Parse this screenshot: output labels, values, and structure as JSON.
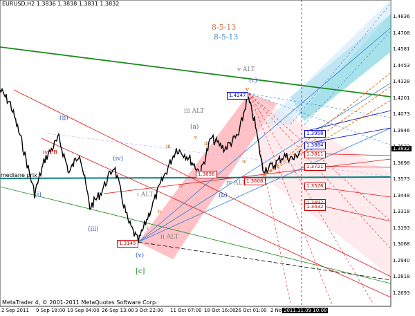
{
  "header": {
    "symbol_line": "EURUSD,H2  1.3836 1.3838 1.3831 1.3832"
  },
  "footer": {
    "copyright": "MetaTrader 4, © 2001-2011 MetaQuotes Software Corp."
  },
  "fib_labels": [
    {
      "text": "8-5-13",
      "color": "#c8764a"
    },
    {
      "text": "8-5-13",
      "color": "#4a90d0"
    }
  ],
  "wave_labels": {
    "ii": "(ii)",
    "i": "(i)",
    "iii_paren": "(iii)",
    "iv_paren": "(iv)",
    "v_paren": "(v)",
    "c_bracket": "[c]",
    "i_alt": "i ALT",
    "ii_alt": "ii ALT",
    "iii_alt": "iii ALT",
    "v_alt": "v ALT",
    "iv_alt": "iv ALT",
    "a": "(a)",
    "b": "(b)",
    "c": "(c)",
    "v_top": "v",
    "iii_small": "iii",
    "iv_small": "iv",
    "iii_small2": "iii",
    "ii_small": "ii",
    "iv_small2": "iv",
    "v_small": "v",
    "i_small": "i",
    "iv_fib": "iv FB",
    "mediane": "mediane prix"
  },
  "price_boxes": [
    {
      "text": "1.4247",
      "color": "#0000c0"
    },
    {
      "text": "1.3145",
      "color": "#c00000"
    },
    {
      "text": "1.3608",
      "color": "#c00000"
    },
    {
      "text": "1.3656",
      "color": "#c00000"
    },
    {
      "text": "1.3958",
      "color": "#0000c0"
    },
    {
      "text": "1.3884",
      "color": "#0000c0"
    },
    {
      "text": "1.3811",
      "color": "#c00000"
    },
    {
      "text": "1.3721",
      "color": "#c00000"
    },
    {
      "text": "1.3576",
      "color": "#c00000"
    },
    {
      "text": "1.3492",
      "color": "#c00000"
    },
    {
      "text": "1.3432",
      "color": "#c00000"
    }
  ],
  "y_axis": [
    "1.4836",
    "1.4708",
    "1.4581",
    "1.4453",
    "1.4328",
    "1.4201",
    "1.4073",
    "1.3946",
    "1.3832",
    "1.3698",
    "1.3573",
    "1.3448",
    "1.3318",
    "1.3193",
    "1.3068",
    "1.2940",
    "1.2818",
    "1.2693"
  ],
  "current_price": "1.3832",
  "x_axis": [
    "2 Sep 2011",
    "9 Sep 18:00",
    "19 Sep 04:00",
    "26 Sep 13:00",
    "3 Oct 22:00",
    "11 Oct 07:00",
    "18 Oct 16:00",
    "26 Oct 01:00",
    "2 Nov",
    "2011.11.09 10:08"
  ],
  "colors": {
    "price_line": "#000000",
    "mediane": "#00807f",
    "green_line": "#1a8a1a",
    "red": "#e01010",
    "blue": "#2b7fd8",
    "orange": "#e07820",
    "cyan": "#5fc8d8",
    "pink": "#ffb0b8"
  }
}
